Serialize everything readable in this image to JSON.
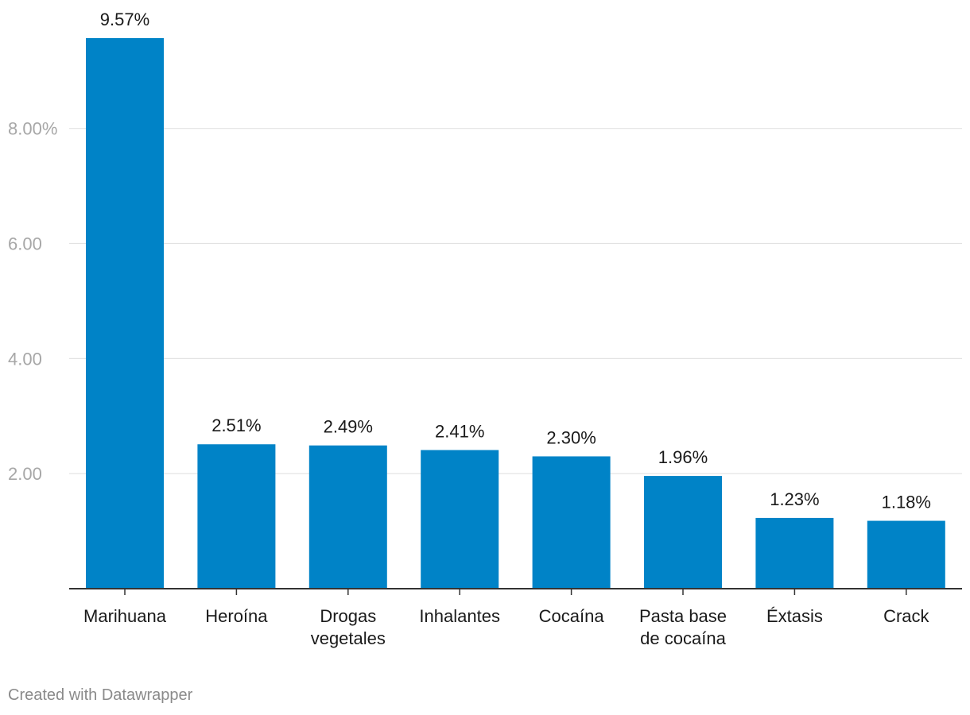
{
  "chart_data": {
    "type": "bar",
    "title": "",
    "xlabel": "",
    "ylabel": "",
    "categories": [
      [
        "Marihuana"
      ],
      [
        "Heroína"
      ],
      [
        "Drogas",
        "vegetales"
      ],
      [
        "Inhalantes"
      ],
      [
        "Cocaína"
      ],
      [
        "Pasta base",
        "de cocaína"
      ],
      [
        "Éxtasis"
      ],
      [
        "Crack"
      ]
    ],
    "values": [
      9.57,
      2.51,
      2.49,
      2.41,
      2.3,
      1.96,
      1.23,
      1.18
    ],
    "value_labels": [
      "9.57%",
      "2.51%",
      "2.49%",
      "2.41%",
      "2.30%",
      "1.96%",
      "1.23%",
      "1.18%"
    ],
    "y_ticks": [
      2,
      4,
      6,
      8
    ],
    "y_tick_labels": [
      "2.00",
      "4.00",
      "6.00",
      "8.00%"
    ],
    "ylim": [
      0,
      9.57
    ],
    "grid": true,
    "legend": "none",
    "bar_color": "#0083c7"
  },
  "footer": {
    "credit": "Created with Datawrapper"
  }
}
